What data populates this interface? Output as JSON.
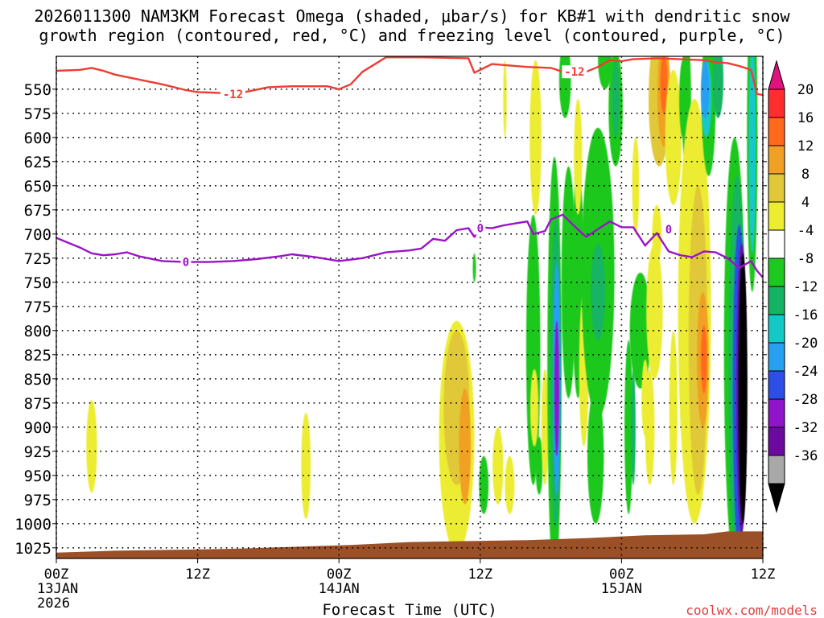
{
  "chart_data": {
    "type": "heatmap",
    "title_line1": "2026011300 NAM3KM Forecast Omega (shaded, μbar/s) for KB#1 with dendritic snow",
    "title_line2": "growth region (contoured, red, °C) and freezing level (contoured, purple, °C)",
    "xlabel": "Forecast Time (UTC)",
    "credit": "coolwx.com/models",
    "x_ticks": [
      {
        "hour": 0,
        "label": "00Z",
        "sub1": "13JAN",
        "sub2": "2026"
      },
      {
        "hour": 12,
        "label": "12Z",
        "sub1": "",
        "sub2": ""
      },
      {
        "hour": 24,
        "label": "00Z",
        "sub1": "14JAN",
        "sub2": ""
      },
      {
        "hour": 36,
        "label": "12Z",
        "sub1": "",
        "sub2": ""
      },
      {
        "hour": 48,
        "label": "00Z",
        "sub1": "15JAN",
        "sub2": ""
      },
      {
        "hour": 60,
        "label": "12Z",
        "sub1": "",
        "sub2": ""
      }
    ],
    "xlim": [
      0,
      60
    ],
    "ylim_hpa": [
      1036,
      516
    ],
    "y_ticks": [
      550,
      575,
      600,
      625,
      650,
      675,
      700,
      725,
      750,
      775,
      800,
      825,
      850,
      875,
      900,
      925,
      950,
      975,
      1000,
      1025
    ],
    "grid": true,
    "colorbar": {
      "levels": [
        -36,
        -32,
        -28,
        -24,
        -20,
        -16,
        -12,
        -8,
        -4,
        4,
        8,
        12,
        16,
        20
      ],
      "colors_top_to_bottom": [
        "#e0137e",
        "#ff2e2e",
        "#ff6a1a",
        "#f0a024",
        "#e0c838",
        "#ecec30",
        "#ffffff",
        "#1ec81e",
        "#14b464",
        "#14c8c8",
        "#28a0f0",
        "#2c50e6",
        "#9014c8",
        "#6c0aa0",
        "#a8a8a8",
        "#000000"
      ]
    },
    "series": [
      {
        "name": "-12",
        "color": "#f03c32",
        "points": [
          [
            0,
            531
          ],
          [
            2,
            530
          ],
          [
            3,
            528
          ],
          [
            4,
            531
          ],
          [
            5,
            535
          ],
          [
            7,
            540
          ],
          [
            9,
            545
          ],
          [
            11,
            551
          ],
          [
            12,
            553
          ],
          [
            14,
            554
          ],
          [
            16,
            553
          ],
          [
            18,
            548
          ],
          [
            20,
            547
          ],
          [
            22,
            547
          ],
          [
            23,
            547
          ],
          [
            24,
            550
          ],
          [
            25,
            545
          ],
          [
            26,
            532
          ],
          [
            28,
            517
          ],
          [
            31,
            517
          ],
          [
            35,
            518
          ],
          [
            35.5,
            533
          ],
          [
            36,
            530
          ],
          [
            37,
            524
          ],
          [
            38,
            525
          ],
          [
            40,
            527
          ],
          [
            42,
            528
          ],
          [
            43,
            532
          ],
          [
            45,
            532
          ],
          [
            46,
            527
          ],
          [
            47,
            520
          ],
          [
            48,
            521
          ],
          [
            49,
            519
          ],
          [
            51,
            518
          ],
          [
            53,
            519
          ],
          [
            55,
            520
          ],
          [
            56,
            522
          ],
          [
            57,
            523
          ],
          [
            58,
            526
          ],
          [
            59,
            530
          ],
          [
            59.5,
            555
          ],
          [
            60,
            556
          ]
        ]
      },
      {
        "name": "0",
        "color": "#9a14c8",
        "points": [
          [
            0,
            704
          ],
          [
            1,
            709
          ],
          [
            2,
            714
          ],
          [
            3,
            720
          ],
          [
            4,
            722
          ],
          [
            5,
            721
          ],
          [
            6,
            719
          ],
          [
            7,
            723
          ],
          [
            9,
            728
          ],
          [
            11,
            729
          ],
          [
            13,
            729
          ],
          [
            15,
            728
          ],
          [
            17,
            726
          ],
          [
            19,
            723
          ],
          [
            20,
            721
          ],
          [
            22,
            724
          ],
          [
            24,
            728
          ],
          [
            26,
            725
          ],
          [
            28,
            719
          ],
          [
            30,
            717
          ],
          [
            31,
            715
          ],
          [
            32,
            705
          ],
          [
            33,
            707
          ],
          [
            34,
            696
          ],
          [
            35,
            694
          ],
          [
            35.5,
            703
          ],
          [
            36,
            693
          ],
          [
            37,
            694
          ],
          [
            38,
            691
          ],
          [
            39,
            689
          ],
          [
            40,
            687
          ],
          [
            40.5,
            700
          ],
          [
            41.5,
            697
          ],
          [
            42,
            685
          ],
          [
            43,
            680
          ],
          [
            44,
            692
          ],
          [
            45,
            703
          ],
          [
            46,
            695
          ],
          [
            47,
            687
          ],
          [
            48,
            693
          ],
          [
            49,
            693
          ],
          [
            50,
            712
          ],
          [
            51,
            699
          ],
          [
            52,
            718
          ],
          [
            53,
            722
          ],
          [
            54,
            724
          ],
          [
            55,
            718
          ],
          [
            56,
            719
          ],
          [
            57,
            725
          ],
          [
            58,
            735
          ],
          [
            59,
            728
          ],
          [
            59.5,
            738
          ],
          [
            60,
            745
          ]
        ]
      }
    ],
    "series_labels": [
      {
        "series": "-12",
        "text": "-12",
        "hour": 15,
        "hpa": 555
      },
      {
        "series": "-12",
        "text": "-12",
        "hour": 44,
        "hpa": 532
      },
      {
        "series": "0",
        "text": "0",
        "hour": 11,
        "hpa": 729
      },
      {
        "series": "0",
        "text": "0",
        "hour": 36,
        "hpa": 694
      },
      {
        "series": "0",
        "text": "0",
        "hour": 52,
        "hpa": 695
      }
    ],
    "terrain_surface_hpa": [
      [
        0,
        1030
      ],
      [
        5,
        1028
      ],
      [
        15,
        1026
      ],
      [
        25,
        1022
      ],
      [
        30,
        1019
      ],
      [
        40,
        1017
      ],
      [
        45,
        1015
      ],
      [
        50,
        1012
      ],
      [
        55,
        1011
      ],
      [
        57,
        1008
      ],
      [
        60,
        1008
      ]
    ],
    "omega_features": [
      {
        "hour": 3.0,
        "hpa": 920,
        "dh": 0.45,
        "dp": 48,
        "value": 5
      },
      {
        "hour": 21.2,
        "hpa": 940,
        "dh": 0.4,
        "dp": 55,
        "value": 5
      },
      {
        "hour": 34.0,
        "hpa": 910,
        "dh": 1.5,
        "dp": 120,
        "value": 6
      },
      {
        "hour": 34.0,
        "hpa": 880,
        "dh": 1.1,
        "dp": 80,
        "value": 10
      },
      {
        "hour": 34.7,
        "hpa": 920,
        "dh": 0.5,
        "dp": 60,
        "value": 14
      },
      {
        "hour": 35.5,
        "hpa": 735,
        "dh": 0.08,
        "dp": 15,
        "value": -6
      },
      {
        "hour": 36.3,
        "hpa": 960,
        "dh": 0.4,
        "dp": 30,
        "value": -6
      },
      {
        "hour": 37.5,
        "hpa": 940,
        "dh": 0.45,
        "dp": 40,
        "value": 6
      },
      {
        "hour": 38.5,
        "hpa": 960,
        "dh": 0.4,
        "dp": 30,
        "value": 6
      },
      {
        "hour": 38.1,
        "hpa": 560,
        "dh": 0.15,
        "dp": 40,
        "value": 5
      },
      {
        "hour": 40.7,
        "hpa": 600,
        "dh": 0.5,
        "dp": 80,
        "value": 5
      },
      {
        "hour": 40.5,
        "hpa": 820,
        "dh": 0.6,
        "dp": 140,
        "value": -6
      },
      {
        "hour": 40.6,
        "hpa": 880,
        "dh": 0.35,
        "dp": 40,
        "value": 6
      },
      {
        "hour": 41.0,
        "hpa": 940,
        "dh": 0.3,
        "dp": 30,
        "value": -8
      },
      {
        "hour": 41.5,
        "hpa": 900,
        "dh": 0.3,
        "dp": 60,
        "value": 6
      },
      {
        "hour": 42.3,
        "hpa": 840,
        "dh": 0.6,
        "dp": 220,
        "value": -6
      },
      {
        "hour": 42.4,
        "hpa": 845,
        "dh": 0.45,
        "dp": 160,
        "value": -10
      },
      {
        "hour": 42.5,
        "hpa": 850,
        "dh": 0.32,
        "dp": 120,
        "value": -18
      },
      {
        "hour": 42.5,
        "hpa": 860,
        "dh": 0.2,
        "dp": 70,
        "value": -26
      },
      {
        "hour": 43.5,
        "hpa": 750,
        "dh": 0.6,
        "dp": 120,
        "value": -7
      },
      {
        "hour": 44.3,
        "hpa": 750,
        "dh": 0.5,
        "dp": 120,
        "value": -6
      },
      {
        "hour": 44.3,
        "hpa": 620,
        "dh": 0.35,
        "dp": 60,
        "value": 5
      },
      {
        "hour": 43.2,
        "hpa": 540,
        "dh": 0.5,
        "dp": 40,
        "value": -6
      },
      {
        "hour": 44.8,
        "hpa": 840,
        "dh": 0.4,
        "dp": 80,
        "value": 6
      },
      {
        "hour": 46.0,
        "hpa": 740,
        "dh": 1.4,
        "dp": 150,
        "value": -6
      },
      {
        "hour": 46.0,
        "hpa": 760,
        "dh": 0.6,
        "dp": 50,
        "value": -10
      },
      {
        "hour": 45.8,
        "hpa": 930,
        "dh": 0.7,
        "dp": 70,
        "value": -7
      },
      {
        "hour": 46.6,
        "hpa": 520,
        "dh": 0.6,
        "dp": 30,
        "value": -6
      },
      {
        "hour": 47.5,
        "hpa": 570,
        "dh": 0.6,
        "dp": 60,
        "value": -7
      },
      {
        "hour": 47.5,
        "hpa": 560,
        "dh": 0.3,
        "dp": 40,
        "value": -10
      },
      {
        "hour": 48.6,
        "hpa": 900,
        "dh": 0.35,
        "dp": 90,
        "value": -6
      },
      {
        "hour": 49.0,
        "hpa": 900,
        "dh": 0.2,
        "dp": 60,
        "value": -10
      },
      {
        "hour": 49.6,
        "hpa": 800,
        "dh": 0.9,
        "dp": 60,
        "value": -6
      },
      {
        "hour": 49.2,
        "hpa": 650,
        "dh": 0.3,
        "dp": 50,
        "value": 5
      },
      {
        "hour": 50.0,
        "hpa": 870,
        "dh": 0.3,
        "dp": 40,
        "value": 6
      },
      {
        "hour": 50.4,
        "hpa": 900,
        "dh": 0.4,
        "dp": 60,
        "value": 6
      },
      {
        "hour": 50.8,
        "hpa": 780,
        "dh": 0.7,
        "dp": 70,
        "value": 7
      },
      {
        "hour": 51.0,
        "hpa": 700,
        "dh": 0.4,
        "dp": 30,
        "value": 6
      },
      {
        "hour": 51.2,
        "hpa": 560,
        "dh": 0.9,
        "dp": 70,
        "value": 8
      },
      {
        "hour": 51.6,
        "hpa": 555,
        "dh": 0.55,
        "dp": 55,
        "value": 14
      },
      {
        "hour": 51.6,
        "hpa": 545,
        "dh": 0.3,
        "dp": 30,
        "value": 19
      },
      {
        "hour": 52.4,
        "hpa": 600,
        "dh": 0.7,
        "dp": 70,
        "value": 7
      },
      {
        "hour": 52.4,
        "hpa": 880,
        "dh": 0.35,
        "dp": 80,
        "value": 5
      },
      {
        "hour": 53.2,
        "hpa": 560,
        "dh": 0.3,
        "dp": 40,
        "value": -8
      },
      {
        "hour": 53.5,
        "hpa": 560,
        "dh": 0.4,
        "dp": 70,
        "value": -8
      },
      {
        "hour": 54.2,
        "hpa": 780,
        "dh": 1.4,
        "dp": 220,
        "value": 6
      },
      {
        "hour": 54.5,
        "hpa": 810,
        "dh": 0.8,
        "dp": 160,
        "value": 9
      },
      {
        "hour": 54.9,
        "hpa": 830,
        "dh": 0.5,
        "dp": 70,
        "value": 14
      },
      {
        "hour": 55.0,
        "hpa": 830,
        "dh": 0.25,
        "dp": 35,
        "value": 18
      },
      {
        "hour": 55.4,
        "hpa": 560,
        "dh": 0.6,
        "dp": 80,
        "value": -7
      },
      {
        "hour": 55.2,
        "hpa": 560,
        "dh": 0.45,
        "dp": 40,
        "value": -13
      },
      {
        "hour": 55.1,
        "hpa": 550,
        "dh": 0.35,
        "dp": 30,
        "value": -17
      },
      {
        "hour": 56.2,
        "hpa": 540,
        "dh": 0.45,
        "dp": 40,
        "value": -10
      },
      {
        "hour": 57.6,
        "hpa": 820,
        "dh": 0.9,
        "dp": 220,
        "value": -6
      },
      {
        "hour": 57.8,
        "hpa": 840,
        "dh": 0.7,
        "dp": 200,
        "value": -12
      },
      {
        "hour": 58.0,
        "hpa": 860,
        "dh": 0.55,
        "dp": 170,
        "value": -22
      },
      {
        "hour": 58.2,
        "hpa": 860,
        "dh": 0.45,
        "dp": 150,
        "value": -30
      },
      {
        "hour": 58.3,
        "hpa": 860,
        "dh": 0.38,
        "dp": 140,
        "value": -38
      },
      {
        "hour": 59.1,
        "hpa": 600,
        "dh": 0.45,
        "dp": 160,
        "value": -7
      },
      {
        "hour": 59.1,
        "hpa": 610,
        "dh": 0.3,
        "dp": 110,
        "value": -13
      }
    ]
  }
}
